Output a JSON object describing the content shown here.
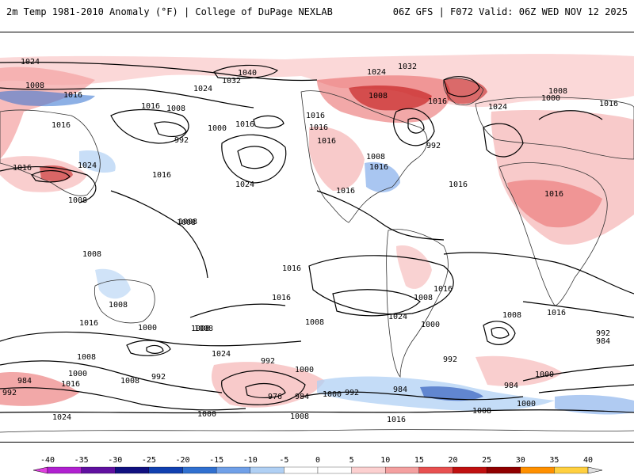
{
  "header": {
    "title": "2m Temp 1981-2010 Anomaly (°F) | College of DuPage NEXLAB",
    "run_info": "06Z GFS | F072 Valid: 06Z WED NOV 12 2025"
  },
  "colorbar": {
    "ticks": [
      "-40",
      "-35",
      "-30",
      "-25",
      "-20",
      "-15",
      "-10",
      "-5",
      "0",
      "5",
      "10",
      "15",
      "20",
      "25",
      "30",
      "35",
      "40"
    ],
    "colors": [
      "#e040e0",
      "#b020d0",
      "#6010a0",
      "#101080",
      "#1040b0",
      "#3070d0",
      "#70a0e8",
      "#b0d0f4",
      "#ffffff",
      "#ffffff",
      "#fcd0d0",
      "#f4a0a0",
      "#e85050",
      "#c01010",
      "#900000",
      "#ff9000",
      "#ffd040"
    ]
  },
  "isobars": [
    {
      "text": "1024"
    },
    {
      "text": "1008"
    },
    {
      "text": "1016"
    },
    {
      "text": "1016"
    },
    {
      "text": "1016"
    },
    {
      "text": "1008"
    },
    {
      "text": "992"
    },
    {
      "text": "1000"
    },
    {
      "text": "1016"
    },
    {
      "text": "1024"
    },
    {
      "text": "1016"
    },
    {
      "text": "1024"
    },
    {
      "text": "1016"
    },
    {
      "text": "1008"
    },
    {
      "text": "1008"
    },
    {
      "text": "1008"
    },
    {
      "text": "1040"
    },
    {
      "text": "1032"
    },
    {
      "text": "1024"
    },
    {
      "text": "1032"
    },
    {
      "text": "1024"
    },
    {
      "text": "1016"
    },
    {
      "text": "1016"
    },
    {
      "text": "1016"
    },
    {
      "text": "1008"
    },
    {
      "text": "1016"
    },
    {
      "text": "1008"
    },
    {
      "text": "1016"
    },
    {
      "text": "992"
    },
    {
      "text": "1016"
    },
    {
      "text": "1024"
    },
    {
      "text": "1008"
    },
    {
      "text": "1000"
    },
    {
      "text": "1016"
    },
    {
      "text": "1016"
    },
    {
      "text": "1016"
    },
    {
      "text": "1016"
    },
    {
      "text": "1016"
    },
    {
      "text": "1008"
    },
    {
      "text": "1016"
    },
    {
      "text": "1008"
    },
    {
      "text": "1008"
    },
    {
      "text": "1000"
    },
    {
      "text": "1008"
    },
    {
      "text": "1024"
    },
    {
      "text": "1016"
    },
    {
      "text": "1024"
    },
    {
      "text": "1008"
    },
    {
      "text": "1000"
    },
    {
      "text": "992"
    },
    {
      "text": "1000"
    },
    {
      "text": "992"
    },
    {
      "text": "976"
    },
    {
      "text": "984"
    },
    {
      "text": "1000"
    },
    {
      "text": "992"
    },
    {
      "text": "984"
    },
    {
      "text": "1008"
    },
    {
      "text": "992"
    },
    {
      "text": "1008"
    },
    {
      "text": "1000"
    },
    {
      "text": "984"
    },
    {
      "text": "1000"
    },
    {
      "text": "1008"
    },
    {
      "text": "1016"
    },
    {
      "text": "1008"
    },
    {
      "text": "992"
    },
    {
      "text": "984"
    },
    {
      "text": "1000"
    },
    {
      "text": "1016"
    },
    {
      "text": "984"
    },
    {
      "text": "992"
    },
    {
      "text": "1008"
    },
    {
      "text": "1024"
    },
    {
      "text": "1000"
    },
    {
      "text": "1008"
    },
    {
      "text": "1016"
    }
  ],
  "colors": {
    "background": "#ffffff",
    "isobar": "#000000",
    "coast": "#333333"
  }
}
